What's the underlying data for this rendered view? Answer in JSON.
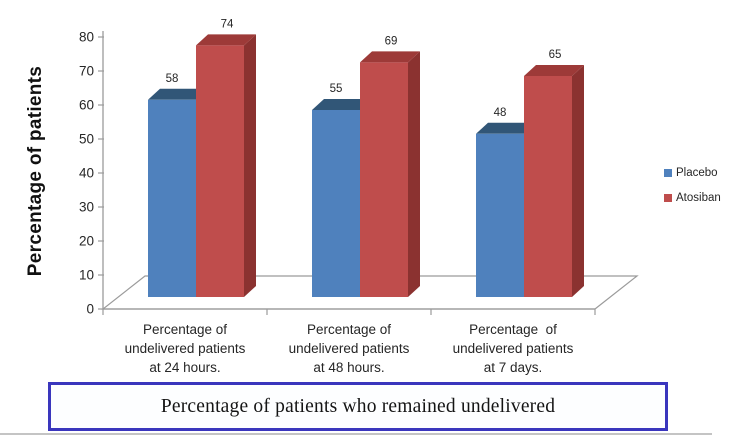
{
  "chart_data": {
    "type": "bar",
    "variant": "3d-clustered-column",
    "title": "",
    "ylabel": "Percentage of patients",
    "xlabel": "",
    "ylim": [
      0,
      80
    ],
    "ytick_step": 10,
    "yticks": [
      0,
      10,
      20,
      30,
      40,
      50,
      60,
      70,
      80
    ],
    "grid": false,
    "legend_position": "right",
    "value_labels": true,
    "categories": [
      [
        "Percentage of",
        "undelivered patients",
        "at 24 hours."
      ],
      [
        "Percentage of",
        "undelivered patients",
        "at 48 hours."
      ],
      [
        "Percentage  of",
        "undelivered patients",
        "at 7 days."
      ]
    ],
    "series": [
      {
        "name": "Placebo",
        "values": [
          58,
          55,
          48
        ],
        "color": "#4f81bd",
        "top_color": "#315677",
        "side_color": "#2c4d6c"
      },
      {
        "name": "Atosiban",
        "values": [
          74,
          69,
          65
        ],
        "color": "#bf4d4c",
        "top_color": "#9d3a38",
        "side_color": "#8b3230"
      }
    ],
    "axis_color": "#9b9b9b",
    "label_color": "#262626"
  },
  "caption": {
    "text": "Percentage of patients who remained undelivered",
    "border_color": "#3a36bd"
  }
}
